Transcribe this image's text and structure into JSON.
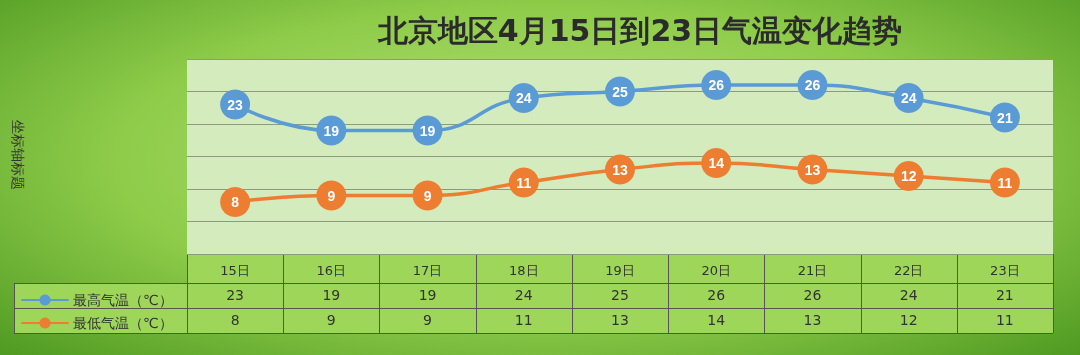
{
  "chart_data": {
    "type": "line",
    "title": "北京地区4月15日到23日气温变化趋势",
    "annotations": [
      "坐标轴标题",
      {
        "text": "23",
        "x": "15日",
        "y": 23
      },
      {
        "text": "19",
        "x": "16日",
        "y": 19
      },
      {
        "text": "19",
        "x": "17日",
        "y": 19
      },
      {
        "text": "24",
        "x": "18日",
        "y": 24
      },
      {
        "text": "25",
        "x": "19日",
        "y": 25
      },
      {
        "text": "26",
        "x": "20日",
        "y": 26
      },
      {
        "text": "26",
        "x": "21日",
        "y": 26
      },
      {
        "text": "24",
        "x": "22日",
        "y": 24
      },
      {
        "text": "21",
        "x": "23日",
        "y": 21
      },
      {
        "text": "8",
        "x": "15日",
        "y": 8
      },
      {
        "text": "9",
        "x": "16日",
        "y": 9
      },
      {
        "text": "9",
        "x": "17日",
        "y": 9
      },
      {
        "text": "11",
        "x": "18日",
        "y": 11
      },
      {
        "text": "13",
        "x": "19日",
        "y": 13
      },
      {
        "text": "14",
        "x": "20日",
        "y": 14
      },
      {
        "text": "13",
        "x": "21日",
        "y": 13
      },
      {
        "text": "12",
        "x": "22日",
        "y": 12
      },
      {
        "text": "11",
        "x": "23日",
        "y": 11
      }
    ],
    "categories": [
      "15日",
      "16日",
      "17日",
      "18日",
      "19日",
      "20日",
      "21日",
      "22日",
      "23日"
    ],
    "series": [
      {
        "name": "最高气温（℃）",
        "color": "#5b9bd5",
        "values": [
          23,
          19,
          19,
          24,
          25,
          26,
          26,
          24,
          21
        ]
      },
      {
        "name": "最低气温（℃）",
        "color": "#ed7d31",
        "values": [
          8,
          9,
          9,
          11,
          13,
          14,
          13,
          12,
          11
        ]
      }
    ],
    "ylim": [
      0,
      30
    ],
    "yticks": [
      {
        "value": 0,
        "label": null
      },
      {
        "value": 5,
        "label": null
      },
      {
        "value": 10,
        "label": null
      },
      {
        "value": 15,
        "label": null
      },
      {
        "value": 20,
        "label": null
      },
      {
        "value": 25,
        "label": null
      },
      {
        "value": 30,
        "label": null
      }
    ],
    "tick_labels": "x",
    "grid": "y",
    "legend": "bottom left",
    "marker": "circle",
    "line_style": "solid",
    "data_labels": true
  }
}
